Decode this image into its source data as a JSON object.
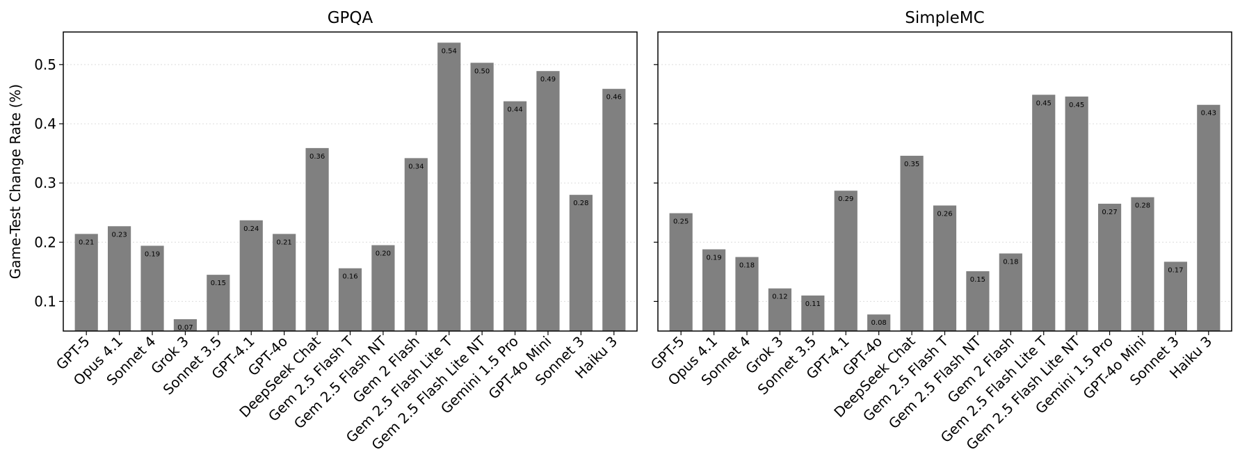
{
  "chart_data": [
    {
      "type": "bar",
      "title": "GPQA",
      "ylabel": "Game-Test Change Rate (%)",
      "xlabel": "",
      "ylim": [
        0.05,
        0.555
      ],
      "yticks": [
        "0.1",
        "0.2",
        "0.3",
        "0.4",
        "0.5"
      ],
      "grid": "horizontal, dotted",
      "color": "#808080",
      "categories": [
        "GPT-5",
        "Opus 4.1",
        "Sonnet 4",
        "Grok 3",
        "Sonnet 3.5",
        "GPT-4.1",
        "GPT-4o",
        "DeepSeek Chat",
        "Gem 2.5 Flash T",
        "Gem 2.5 Flash NT",
        "Gem 2 Flash",
        "Gem 2.5 Flash Lite T",
        "Gem 2.5 Flash Lite NT",
        "Gemini 1.5 Pro",
        "GPT-4o Mini",
        "Sonnet 3",
        "Haiku 3"
      ],
      "values": [
        0.214,
        0.227,
        0.194,
        0.07,
        0.145,
        0.237,
        0.214,
        0.359,
        0.156,
        0.195,
        0.342,
        0.537,
        0.503,
        0.438,
        0.489,
        0.28,
        0.459
      ],
      "labels": [
        "0.21",
        "0.23",
        "0.19",
        "0.07",
        "0.15",
        "0.24",
        "0.21",
        "0.36",
        "0.16",
        "0.20",
        "0.34",
        "0.54",
        "0.50",
        "0.44",
        "0.49",
        "0.28",
        "0.46"
      ]
    },
    {
      "type": "bar",
      "title": "SimpleMC",
      "ylabel": "",
      "xlabel": "",
      "ylim": [
        0.05,
        0.555
      ],
      "grid": "horizontal, dotted",
      "color": "#808080",
      "categories": [
        "GPT-5",
        "Opus 4.1",
        "Sonnet 4",
        "Grok 3",
        "Sonnet 3.5",
        "GPT-4.1",
        "GPT-4o",
        "DeepSeek Chat",
        "Gem 2.5 Flash T",
        "Gem 2.5 Flash NT",
        "Gem 2 Flash",
        "Gem 2.5 Flash Lite T",
        "Gem 2.5 Flash Lite NT",
        "Gemini 1.5 Pro",
        "GPT-4o Mini",
        "Sonnet 3",
        "Haiku 3"
      ],
      "values": [
        0.249,
        0.188,
        0.175,
        0.122,
        0.11,
        0.287,
        0.078,
        0.346,
        0.262,
        0.151,
        0.181,
        0.449,
        0.446,
        0.265,
        0.276,
        0.167,
        0.432
      ],
      "labels": [
        "0.25",
        "0.19",
        "0.18",
        "0.12",
        "0.11",
        "0.29",
        "0.08",
        "0.35",
        "0.26",
        "0.15",
        "0.18",
        "0.45",
        "0.45",
        "0.27",
        "0.28",
        "0.17",
        "0.43"
      ]
    }
  ]
}
